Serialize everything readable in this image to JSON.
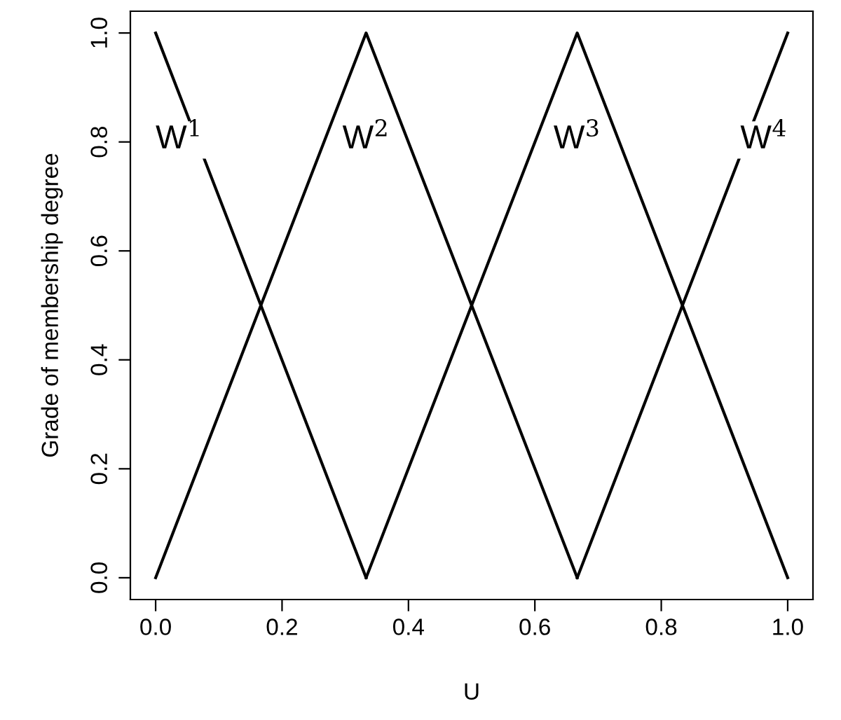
{
  "chart_data": {
    "type": "line",
    "xlabel": "U",
    "ylabel": "Grade of membership degree",
    "series": [
      {
        "name": "W$^{1}$",
        "color": "#000000",
        "x": [
          0,
          0.333
        ],
        "values": [
          1,
          0
        ]
      },
      {
        "name": "W$^{2}$",
        "color": "#000000",
        "x": [
          0,
          0.333,
          0.667
        ],
        "values": [
          0,
          1,
          0
        ]
      },
      {
        "name": "W$^{3}$",
        "color": "#000000",
        "x": [
          0.333,
          0.667,
          1
        ],
        "values": [
          0,
          1,
          0
        ]
      },
      {
        "name": "W$^{4}$",
        "color": "#000000",
        "x": [
          0.667,
          1
        ],
        "values": [
          0,
          1
        ]
      }
    ],
    "xlim": [
      -0.04,
      1.04
    ],
    "ylim": [
      -0.04,
      1.04
    ],
    "xticks": [
      {
        "value": 0,
        "label": "0.0"
      },
      {
        "value": 0.2,
        "label": "0.2"
      },
      {
        "value": 0.4,
        "label": "0.4"
      },
      {
        "value": 0.6,
        "label": "0.6"
      },
      {
        "value": 0.8,
        "label": "0.8"
      },
      {
        "value": 1,
        "label": "1.0"
      }
    ],
    "yticks": [
      {
        "value": 0,
        "label": "0.0"
      },
      {
        "value": 0.2,
        "label": "0.2"
      },
      {
        "value": 0.4,
        "label": "0.4"
      },
      {
        "value": 0.6,
        "label": "0.6"
      },
      {
        "value": 0.8,
        "label": "0.8"
      },
      {
        "value": 1,
        "label": "1.0"
      }
    ],
    "grid": false,
    "legend": false,
    "marker": "none",
    "line_style": "solid"
  }
}
